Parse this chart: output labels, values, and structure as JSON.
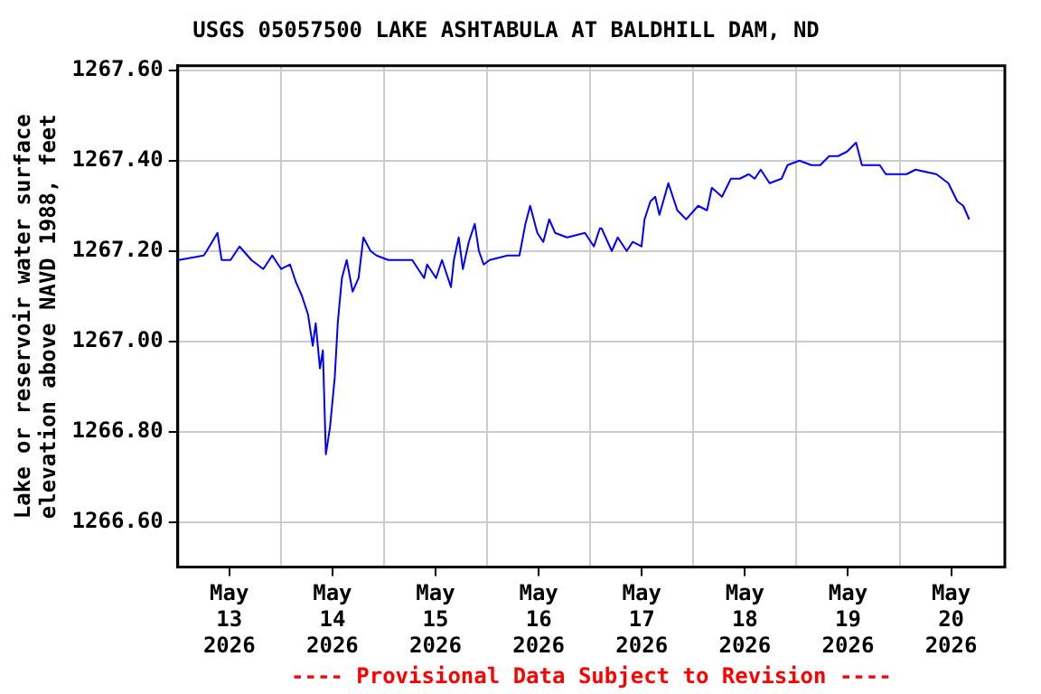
{
  "chart_data": {
    "type": "line",
    "title": "USGS 05057500 LAKE ASHTABULA AT BALDHILL DAM, ND",
    "ylabel": "Lake or reservoir water surface elevation above NAVD 1988, feet",
    "annotations": [
      "---- Provisional Data Subject to Revision ----"
    ],
    "x": [
      "2026-05-12T12:13",
      "2026-05-12T18:02",
      "2026-05-12T18:44",
      "2026-05-12T21:14",
      "2026-05-12T22:12",
      "2026-05-13T00:17",
      "2026-05-13T02:22",
      "2026-05-13T05:08",
      "2026-05-13T07:54",
      "2026-05-13T09:59",
      "2026-05-13T12:04",
      "2026-05-13T14:08",
      "2026-05-13T15:32",
      "2026-05-13T16:55",
      "2026-05-13T18:18",
      "2026-05-13T19:25",
      "2026-05-13T20:06",
      "2026-05-13T21:05",
      "2026-05-13T21:46",
      "2026-05-13T22:28",
      "2026-05-13T23:26",
      "2026-05-14T00:32",
      "2026-05-14T01:14",
      "2026-05-14T02:12",
      "2026-05-14T03:19",
      "2026-05-14T04:42",
      "2026-05-14T06:05",
      "2026-05-14T07:12",
      "2026-05-14T08:52",
      "2026-05-14T10:15",
      "2026-05-14T13:01",
      "2026-05-14T14:24",
      "2026-05-14T18:34",
      "2026-05-14T21:20",
      "2026-05-14T22:02",
      "2026-05-15T00:07",
      "2026-05-15T01:30",
      "2026-05-15T03:35",
      "2026-05-15T04:16",
      "2026-05-15T05:23",
      "2026-05-15T06:21",
      "2026-05-15T07:44",
      "2026-05-15T09:07",
      "2026-05-15T10:05",
      "2026-05-15T11:12",
      "2026-05-15T12:35",
      "2026-05-15T16:45",
      "2026-05-15T19:31",
      "2026-05-15T20:55",
      "2026-05-15T22:01",
      "2026-05-15T23:41",
      "2026-05-16T01:04",
      "2026-05-16T02:27",
      "2026-05-16T03:50",
      "2026-05-16T06:37",
      "2026-05-16T10:46",
      "2026-05-16T12:51",
      "2026-05-16T14:14",
      "2026-05-16T14:39",
      "2026-05-16T17:01",
      "2026-05-16T18:24",
      "2026-05-16T20:29",
      "2026-05-16T21:52",
      "2026-05-16T23:56",
      "2026-05-17T00:38",
      "2026-05-17T02:01",
      "2026-05-17T03:08",
      "2026-05-17T04:06",
      "2026-05-17T06:11",
      "2026-05-17T08:16",
      "2026-05-17T10:20",
      "2026-05-17T13:07",
      "2026-05-17T15:11",
      "2026-05-17T16:18",
      "2026-05-17T18:40",
      "2026-05-17T20:44",
      "2026-05-17T22:49",
      "2026-05-18T00:54",
      "2026-05-18T02:17",
      "2026-05-18T03:40",
      "2026-05-18T05:45",
      "2026-05-18T08:32",
      "2026-05-18T09:55",
      "2026-05-18T12:41",
      "2026-05-18T15:28",
      "2026-05-18T17:32",
      "2026-05-18T19:37",
      "2026-05-18T21:42",
      "2026-05-18T23:47",
      "2026-05-19T01:52",
      "2026-05-19T03:14",
      "2026-05-19T05:19",
      "2026-05-19T07:24",
      "2026-05-19T08:47",
      "2026-05-19T10:52",
      "2026-05-19T13:38",
      "2026-05-19T15:43",
      "2026-05-19T20:34",
      "2026-05-19T23:21",
      "2026-05-20T01:26",
      "2026-05-20T02:49",
      "2026-05-20T04:12"
    ],
    "series": [
      {
        "color": "#0000ff",
        "values": [
          1267.18,
          1267.19,
          1267.2,
          1267.24,
          1267.18,
          1267.18,
          1267.21,
          1267.18,
          1267.16,
          1267.19,
          1267.16,
          1267.17,
          1267.13,
          1267.1,
          1267.06,
          1266.99,
          1267.04,
          1266.94,
          1266.98,
          1266.75,
          1266.81,
          1266.92,
          1267.04,
          1267.14,
          1267.18,
          1267.11,
          1267.14,
          1267.23,
          1267.2,
          1267.19,
          1267.18,
          1267.18,
          1267.18,
          1267.14,
          1267.17,
          1267.14,
          1267.18,
          1267.12,
          1267.18,
          1267.23,
          1267.16,
          1267.22,
          1267.26,
          1267.2,
          1267.17,
          1267.18,
          1267.19,
          1267.19,
          1267.26,
          1267.3,
          1267.24,
          1267.22,
          1267.27,
          1267.24,
          1267.23,
          1267.24,
          1267.21,
          1267.25,
          1267.25,
          1267.2,
          1267.23,
          1267.2,
          1267.22,
          1267.21,
          1267.27,
          1267.31,
          1267.32,
          1267.28,
          1267.35,
          1267.29,
          1267.27,
          1267.3,
          1267.29,
          1267.34,
          1267.32,
          1267.36,
          1267.36,
          1267.37,
          1267.36,
          1267.38,
          1267.35,
          1267.36,
          1267.39,
          1267.4,
          1267.39,
          1267.39,
          1267.41,
          1267.41,
          1267.42,
          1267.44,
          1267.39,
          1267.39,
          1267.39,
          1267.37,
          1267.37,
          1267.37,
          1267.38,
          1267.37,
          1267.35,
          1267.31,
          1267.3,
          1267.27
        ]
      }
    ],
    "xlim": [
      "2026-05-12T12:00",
      "2026-05-20T12:30"
    ],
    "xticks": [
      {
        "value": "2026-05-13T00:00",
        "label": "May 13 2026"
      },
      {
        "value": "2026-05-13T12:00",
        "label": null
      },
      {
        "value": "2026-05-14T00:00",
        "label": "May 14 2026"
      },
      {
        "value": "2026-05-14T12:00",
        "label": null
      },
      {
        "value": "2026-05-15T00:00",
        "label": "May 15 2026"
      },
      {
        "value": "2026-05-15T12:00",
        "label": null
      },
      {
        "value": "2026-05-16T00:00",
        "label": "May 16 2026"
      },
      {
        "value": "2026-05-16T12:00",
        "label": null
      },
      {
        "value": "2026-05-17T00:00",
        "label": "May 17 2026"
      },
      {
        "value": "2026-05-17T12:00",
        "label": null
      },
      {
        "value": "2026-05-18T00:00",
        "label": "May 18 2026"
      },
      {
        "value": "2026-05-18T12:00",
        "label": null
      },
      {
        "value": "2026-05-19T00:00",
        "label": "May 19 2026"
      },
      {
        "value": "2026-05-19T12:00",
        "label": null
      },
      {
        "value": "2026-05-20T00:00",
        "label": "May 20 2026"
      }
    ],
    "ylim": [
      1266.5,
      1267.61
    ],
    "yticks": [
      {
        "value": 1266.6,
        "label": "1266.60"
      },
      {
        "value": 1266.8,
        "label": "1266.80"
      },
      {
        "value": 1267.0,
        "label": "1267.00"
      },
      {
        "value": 1267.2,
        "label": "1267.20"
      },
      {
        "value": 1267.4,
        "label": "1267.40"
      },
      {
        "value": 1267.6,
        "label": "1267.60"
      }
    ],
    "grid": true
  }
}
